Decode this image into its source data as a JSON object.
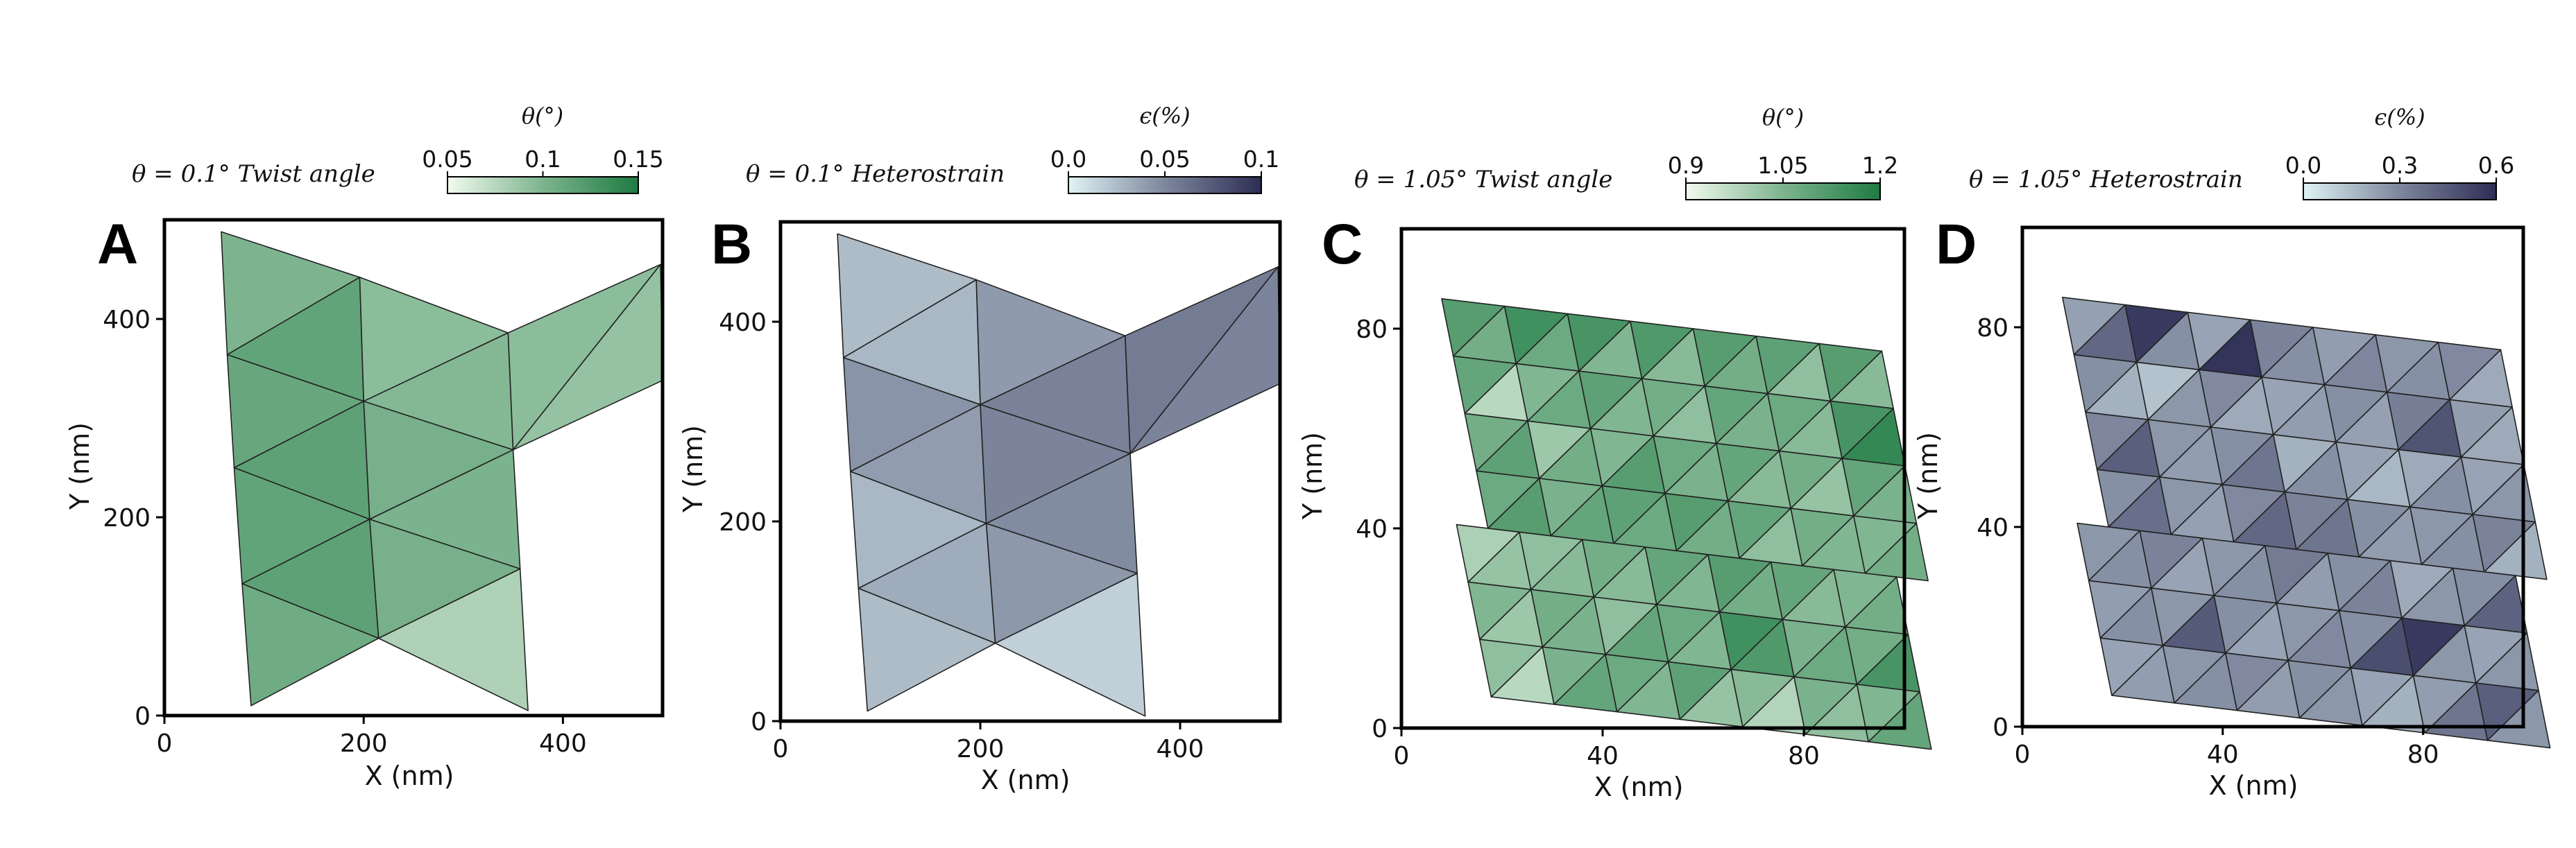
{
  "chart_data": [
    {
      "type": "heatmap",
      "panel_label": "A",
      "title": "θ = 0.1° Twist angle",
      "xlabel": "X (nm)",
      "ylabel": "Y (nm)",
      "xlim": [
        0,
        500
      ],
      "ylim": [
        0,
        500
      ],
      "xticks": [
        "0",
        "200",
        "400"
      ],
      "yticks": [
        "0",
        "200",
        "400"
      ],
      "colorbar": {
        "label": "θ(°)",
        "ticks": [
          "0.05",
          "0.1",
          "0.15"
        ],
        "range": [
          0.05,
          0.15
        ],
        "colormap": [
          "#f2faee",
          "#1e7b42"
        ]
      },
      "triangles": [
        {
          "pts": [
            [
              57,
              488
            ],
            [
              196,
              442
            ],
            [
              63,
              364
            ]
          ],
          "value": 0.105
        },
        {
          "pts": [
            [
              196,
              442
            ],
            [
              63,
              364
            ],
            [
              200,
              317
            ]
          ],
          "value": 0.118
        },
        {
          "pts": [
            [
              196,
              442
            ],
            [
              345,
              386
            ],
            [
              200,
              317
            ]
          ],
          "value": 0.098
        },
        {
          "pts": [
            [
              345,
              386
            ],
            [
              200,
              317
            ],
            [
              350,
              268
            ]
          ],
          "value": 0.102
        },
        {
          "pts": [
            [
              345,
              386
            ],
            [
              498,
              455
            ],
            [
              350,
              268
            ]
          ],
          "value": 0.098
        },
        {
          "pts": [
            [
              498,
              455
            ],
            [
              350,
              268
            ],
            [
              500,
              338
            ]
          ],
          "value": 0.094
        },
        {
          "pts": [
            [
              63,
              364
            ],
            [
              200,
              317
            ],
            [
              70,
              250
            ]
          ],
          "value": 0.115
        },
        {
          "pts": [
            [
              200,
              317
            ],
            [
              70,
              250
            ],
            [
              206,
              198
            ]
          ],
          "value": 0.12
        },
        {
          "pts": [
            [
              200,
              317
            ],
            [
              350,
              268
            ],
            [
              206,
              198
            ]
          ],
          "value": 0.108
        },
        {
          "pts": [
            [
              350,
              268
            ],
            [
              206,
              198
            ],
            [
              357,
              148
            ]
          ],
          "value": 0.106
        },
        {
          "pts": [
            [
              70,
              250
            ],
            [
              206,
              198
            ],
            [
              78,
              133
            ]
          ],
          "value": 0.118
        },
        {
          "pts": [
            [
              206,
              198
            ],
            [
              78,
              133
            ],
            [
              215,
              78
            ]
          ],
          "value": 0.12
        },
        {
          "pts": [
            [
              206,
              198
            ],
            [
              357,
              148
            ],
            [
              215,
              78
            ]
          ],
          "value": 0.108
        },
        {
          "pts": [
            [
              357,
              148
            ],
            [
              215,
              78
            ],
            [
              365,
              5
            ]
          ],
          "value": 0.082
        },
        {
          "pts": [
            [
              78,
              133
            ],
            [
              215,
              78
            ],
            [
              87,
              10
            ]
          ],
          "value": 0.112
        }
      ]
    },
    {
      "type": "heatmap",
      "panel_label": "B",
      "title": "θ = 0.1° Heterostrain",
      "xlabel": "X (nm)",
      "ylabel": "Y (nm)",
      "xlim": [
        0,
        500
      ],
      "ylim": [
        0,
        500
      ],
      "xticks": [
        "0",
        "200",
        "400"
      ],
      "yticks": [
        "0",
        "200",
        "400"
      ],
      "colorbar": {
        "label": "ϵ(%)",
        "ticks": [
          "0.0",
          "0.05",
          "0.1"
        ],
        "range": [
          0.0,
          0.1
        ],
        "colormap": [
          "#e0f3f5",
          "#2c2d54"
        ]
      },
      "triangles": [
        {
          "pts": [
            [
              57,
              488
            ],
            [
              196,
              442
            ],
            [
              63,
              364
            ]
          ],
          "value": 0.028
        },
        {
          "pts": [
            [
              196,
              442
            ],
            [
              63,
              364
            ],
            [
              200,
              317
            ]
          ],
          "value": 0.03
        },
        {
          "pts": [
            [
              196,
              442
            ],
            [
              345,
              386
            ],
            [
              200,
              317
            ]
          ],
          "value": 0.045
        },
        {
          "pts": [
            [
              345,
              386
            ],
            [
              200,
              317
            ],
            [
              350,
              268
            ]
          ],
          "value": 0.057
        },
        {
          "pts": [
            [
              345,
              386
            ],
            [
              498,
              455
            ],
            [
              350,
              268
            ]
          ],
          "value": 0.06
        },
        {
          "pts": [
            [
              498,
              455
            ],
            [
              350,
              268
            ],
            [
              500,
              338
            ]
          ],
          "value": 0.056
        },
        {
          "pts": [
            [
              63,
              364
            ],
            [
              200,
              317
            ],
            [
              70,
              250
            ]
          ],
          "value": 0.048
        },
        {
          "pts": [
            [
              200,
              317
            ],
            [
              70,
              250
            ],
            [
              206,
              198
            ]
          ],
          "value": 0.044
        },
        {
          "pts": [
            [
              200,
              317
            ],
            [
              350,
              268
            ],
            [
              206,
              198
            ]
          ],
          "value": 0.056
        },
        {
          "pts": [
            [
              350,
              268
            ],
            [
              206,
              198
            ],
            [
              357,
              148
            ]
          ],
          "value": 0.052
        },
        {
          "pts": [
            [
              70,
              250
            ],
            [
              206,
              198
            ],
            [
              78,
              133
            ]
          ],
          "value": 0.03
        },
        {
          "pts": [
            [
              206,
              198
            ],
            [
              78,
              133
            ],
            [
              215,
              78
            ]
          ],
          "value": 0.036
        },
        {
          "pts": [
            [
              206,
              198
            ],
            [
              357,
              148
            ],
            [
              215,
              78
            ]
          ],
          "value": 0.046
        },
        {
          "pts": [
            [
              357,
              148
            ],
            [
              215,
              78
            ],
            [
              365,
              5
            ]
          ],
          "value": 0.018
        },
        {
          "pts": [
            [
              78,
              133
            ],
            [
              215,
              78
            ],
            [
              87,
              10
            ]
          ],
          "value": 0.028
        }
      ]
    },
    {
      "type": "heatmap",
      "panel_label": "C",
      "title": "θ = 1.05° Twist angle",
      "xlabel": "X (nm)",
      "ylabel": "Y (nm)",
      "xlim": [
        0,
        100
      ],
      "ylim": [
        0,
        100
      ],
      "xticks": [
        "0",
        "40",
        "80"
      ],
      "yticks": [
        "0",
        "40",
        "80"
      ],
      "colorbar": {
        "label": "θ(°)",
        "ticks": [
          "0.9",
          "1.05",
          "1.2"
        ],
        "range": [
          0.9,
          1.2
        ],
        "colormap": [
          "#f2faee",
          "#1e7b42"
        ]
      },
      "lattice": {
        "origin": [
          8,
          86
        ],
        "a": [
          12.5,
          -1.5
        ],
        "b": [
          2.3,
          -11.5
        ],
        "rows": 4,
        "cols": 7,
        "shift_rows": 3
      },
      "values": [
        [
          1.12,
          1.08,
          1.15,
          1.09,
          1.14,
          1.06,
          1.13,
          1.05,
          1.12,
          1.08,
          1.11,
          1.04,
          1.12,
          1.05
        ],
        [
          1.1,
          0.98,
          1.06,
          1.09,
          1.11,
          1.06,
          1.08,
          1.04,
          1.1,
          1.07,
          1.09,
          1.05,
          1.14,
          1.17
        ],
        [
          1.08,
          1.11,
          1.02,
          1.08,
          1.06,
          1.12,
          1.09,
          1.07,
          1.1,
          1.05,
          1.08,
          1.03,
          1.1,
          1.07
        ],
        [
          1.09,
          1.12,
          1.07,
          1.1,
          1.11,
          1.09,
          1.12,
          1.08,
          1.1,
          1.04,
          1.08,
          1.06,
          1.06,
          1.08
        ],
        [
          1.0,
          1.03,
          1.04,
          1.05,
          1.08,
          1.05,
          1.1,
          1.06,
          1.12,
          1.08,
          1.1,
          1.05,
          1.06,
          1.08
        ],
        [
          1.06,
          1.02,
          1.08,
          1.07,
          1.04,
          1.1,
          1.09,
          1.06,
          1.15,
          1.13,
          1.07,
          1.09,
          1.08,
          1.14
        ],
        [
          1.04,
          0.98,
          1.07,
          1.1,
          1.09,
          1.06,
          1.11,
          1.03,
          1.05,
          0.99,
          1.07,
          1.04,
          1.06,
          1.1
        ]
      ]
    },
    {
      "type": "heatmap",
      "panel_label": "D",
      "title": "θ = 1.05° Heterostrain",
      "xlabel": "X (nm)",
      "ylabel": "Y (nm)",
      "xlim": [
        0,
        100
      ],
      "ylim": [
        0,
        100
      ],
      "xticks": [
        "0",
        "40",
        "80"
      ],
      "yticks": [
        "0",
        "40",
        "80"
      ],
      "colorbar": {
        "label": "ϵ(%)",
        "ticks": [
          "0.0",
          "0.3",
          "0.6"
        ],
        "range": [
          0.0,
          0.6
        ],
        "colormap": [
          "#e0f3f5",
          "#2c2d54"
        ]
      },
      "lattice": {
        "origin": [
          8,
          86
        ],
        "a": [
          12.5,
          -1.5
        ],
        "b": [
          2.3,
          -11.5
        ],
        "rows": 4,
        "cols": 7,
        "shift_rows": 3
      },
      "values": [
        [
          0.25,
          0.42,
          0.56,
          0.3,
          0.24,
          0.58,
          0.34,
          0.3,
          0.26,
          0.33,
          0.28,
          0.3,
          0.32,
          0.22
        ],
        [
          0.3,
          0.2,
          0.15,
          0.28,
          0.32,
          0.22,
          0.24,
          0.26,
          0.3,
          0.25,
          0.35,
          0.48,
          0.26,
          0.22
        ],
        [
          0.33,
          0.45,
          0.28,
          0.26,
          0.3,
          0.38,
          0.2,
          0.3,
          0.24,
          0.18,
          0.22,
          0.3,
          0.24,
          0.28
        ],
        [
          0.3,
          0.4,
          0.28,
          0.25,
          0.32,
          0.42,
          0.34,
          0.38,
          0.3,
          0.26,
          0.28,
          0.3,
          0.34,
          0.2
        ],
        [
          0.28,
          0.3,
          0.34,
          0.24,
          0.28,
          0.3,
          0.36,
          0.26,
          0.3,
          0.34,
          0.22,
          0.28,
          0.3,
          0.44
        ],
        [
          0.26,
          0.3,
          0.28,
          0.46,
          0.3,
          0.24,
          0.28,
          0.32,
          0.3,
          0.5,
          0.56,
          0.28,
          0.24,
          0.28
        ],
        [
          0.24,
          0.26,
          0.28,
          0.3,
          0.32,
          0.26,
          0.3,
          0.28,
          0.24,
          0.2,
          0.26,
          0.38,
          0.45,
          0.28
        ]
      ]
    }
  ]
}
